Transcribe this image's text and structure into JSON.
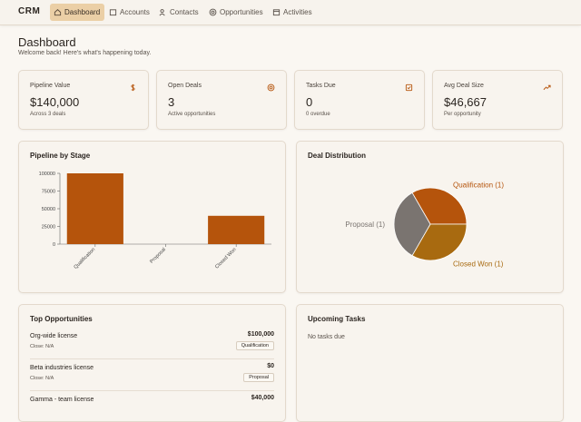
{
  "nav": {
    "brand": "CRM",
    "tabs": [
      "Dashboard",
      "Accounts",
      "Contacts",
      "Opportunities",
      "Activities"
    ],
    "active": 0
  },
  "header": {
    "title": "Dashboard",
    "subtitle": "Welcome back! Here's what's happening today."
  },
  "kpis": [
    {
      "label": "Pipeline Value",
      "value": "$140,000",
      "note": "Across 3 deals"
    },
    {
      "label": "Open Deals",
      "value": "3",
      "note": "Active opportunities"
    },
    {
      "label": "Tasks Due",
      "value": "0",
      "note": "0 overdue"
    },
    {
      "label": "Avg Deal Size",
      "value": "$46,667",
      "note": "Per opportunity"
    }
  ],
  "chart_data": [
    {
      "type": "bar",
      "title": "Pipeline by Stage",
      "categories": [
        "Qualification",
        "Proposal",
        "Closed Won"
      ],
      "values": [
        100000,
        0,
        40000
      ],
      "color": "#b5540c",
      "ylim": [
        0,
        100000
      ],
      "yticks": [
        0,
        25000,
        50000,
        75000,
        100000
      ],
      "grid": false
    },
    {
      "type": "pie",
      "title": "Deal Distribution",
      "values": [
        1,
        1,
        1
      ],
      "value_labels": [
        "Qualification (1)",
        "Closed Won (1)",
        "Proposal (1)"
      ],
      "colors": [
        "#b5540c",
        "#a86a10",
        "#7a7470"
      ]
    }
  ],
  "opportunities": {
    "title": "Top Opportunities",
    "items": [
      {
        "name": "Org-wide license",
        "close": "Close: N/A",
        "amount": "$100,000",
        "stage": "Qualification"
      },
      {
        "name": "Beta industries license",
        "close": "Close: N/A",
        "amount": "$0",
        "stage": "Proposal"
      },
      {
        "name": "Gamma - team license",
        "amount": "$40,000"
      }
    ]
  },
  "tasks": {
    "title": "Upcoming Tasks",
    "empty": "No tasks due"
  }
}
